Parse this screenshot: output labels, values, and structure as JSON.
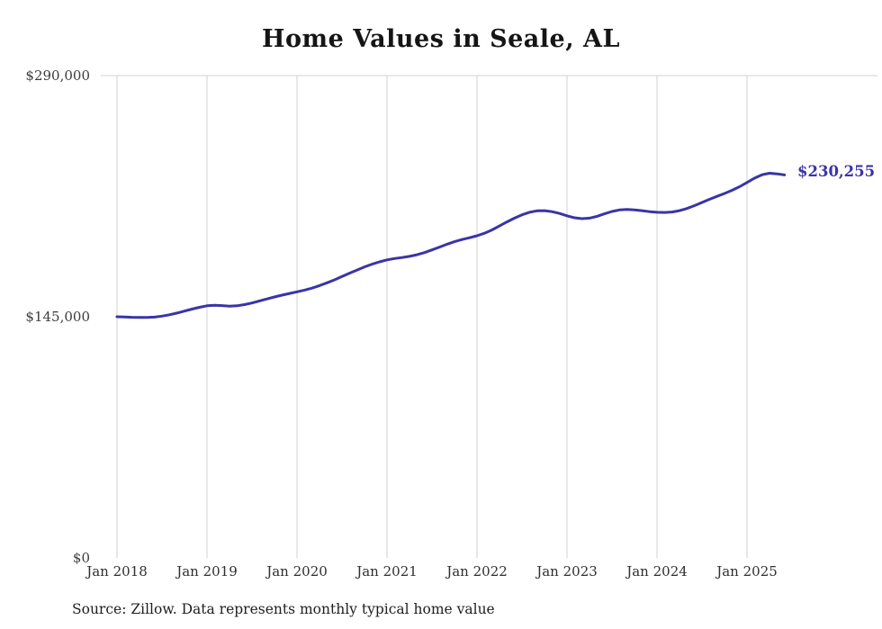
{
  "title": "Home Values in Seale, AL",
  "source_note": "Source: Zillow. Data represents monthly typical home value",
  "colors": {
    "line": "#3a34a8",
    "grid": "#d0d0d0",
    "title_text": "#151515",
    "axis_text": "#3d3d3d"
  },
  "chart_data": {
    "type": "line",
    "title": "Home Values in Seale, AL",
    "xlabel": "",
    "ylabel": "",
    "ylim": [
      0,
      290000
    ],
    "grid": "vertical",
    "legend": "none",
    "end_label": "$230,255",
    "end_value": 230255,
    "y_ticks": [
      {
        "label": "$0",
        "value": 0
      },
      {
        "label": "$145,000",
        "value": 145000
      },
      {
        "label": "$290,000",
        "value": 290000
      }
    ],
    "x_ticks": [
      {
        "label": "Jan 2018",
        "index": 0
      },
      {
        "label": "Jan 2019",
        "index": 12
      },
      {
        "label": "Jan 2020",
        "index": 24
      },
      {
        "label": "Jan 2021",
        "index": 36
      },
      {
        "label": "Jan 2022",
        "index": 48
      },
      {
        "label": "Jan 2023",
        "index": 60
      },
      {
        "label": "Jan 2024",
        "index": 72
      },
      {
        "label": "Jan 2025",
        "index": 84
      }
    ],
    "x": [
      "2018-01",
      "2018-02",
      "2018-03",
      "2018-04",
      "2018-05",
      "2018-06",
      "2018-07",
      "2018-08",
      "2018-09",
      "2018-10",
      "2018-11",
      "2018-12",
      "2019-01",
      "2019-02",
      "2019-03",
      "2019-04",
      "2019-05",
      "2019-06",
      "2019-07",
      "2019-08",
      "2019-09",
      "2019-10",
      "2019-11",
      "2019-12",
      "2020-01",
      "2020-02",
      "2020-03",
      "2020-04",
      "2020-05",
      "2020-06",
      "2020-07",
      "2020-08",
      "2020-09",
      "2020-10",
      "2020-11",
      "2020-12",
      "2021-01",
      "2021-02",
      "2021-03",
      "2021-04",
      "2021-05",
      "2021-06",
      "2021-07",
      "2021-08",
      "2021-09",
      "2021-10",
      "2021-11",
      "2021-12",
      "2022-01",
      "2022-02",
      "2022-03",
      "2022-04",
      "2022-05",
      "2022-06",
      "2022-07",
      "2022-08",
      "2022-09",
      "2022-10",
      "2022-11",
      "2022-12",
      "2023-01",
      "2023-02",
      "2023-03",
      "2023-04",
      "2023-05",
      "2023-06",
      "2023-07",
      "2023-08",
      "2023-09",
      "2023-10",
      "2023-11",
      "2023-12",
      "2024-01",
      "2024-02",
      "2024-03",
      "2024-04",
      "2024-05",
      "2024-06",
      "2024-07",
      "2024-08",
      "2024-09",
      "2024-10",
      "2024-11",
      "2024-12",
      "2025-01",
      "2025-02",
      "2025-03",
      "2025-04",
      "2025-05",
      "2025-06"
    ],
    "values": [
      145000,
      144900,
      144700,
      144600,
      144600,
      144800,
      145400,
      146200,
      147200,
      148400,
      149600,
      150700,
      151600,
      151900,
      151700,
      151400,
      151600,
      152300,
      153300,
      154500,
      155700,
      156900,
      158000,
      159000,
      160000,
      161000,
      162200,
      163700,
      165400,
      167200,
      169200,
      171200,
      173100,
      175000,
      176600,
      178000,
      179200,
      180000,
      180600,
      181300,
      182300,
      183600,
      185200,
      186900,
      188600,
      190100,
      191400,
      192500,
      193700,
      195200,
      197200,
      199600,
      202000,
      204300,
      206300,
      207800,
      208700,
      208800,
      208200,
      207100,
      205700,
      204500,
      204000,
      204300,
      205400,
      206900,
      208300,
      209200,
      209500,
      209300,
      208800,
      208200,
      207800,
      207700,
      208000,
      208800,
      210100,
      211800,
      213700,
      215600,
      217400,
      219100,
      221000,
      223200,
      225700,
      228300,
      230400,
      231300,
      230900,
      230255
    ]
  }
}
